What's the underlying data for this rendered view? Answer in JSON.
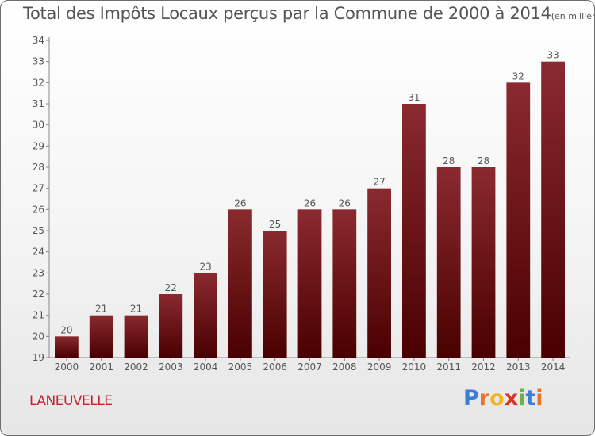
{
  "chart_data": {
    "type": "bar",
    "title": "Total des Impôts Locaux perçus par la Commune de 2000 à 2014",
    "title_unit": "(en milliers d'€)",
    "categories": [
      "2000",
      "2001",
      "2002",
      "2003",
      "2004",
      "2005",
      "2006",
      "2007",
      "2008",
      "2009",
      "2010",
      "2011",
      "2012",
      "2013",
      "2014"
    ],
    "values": [
      20,
      21,
      21,
      22,
      23,
      26,
      25,
      26,
      26,
      27,
      31,
      28,
      28,
      32,
      33
    ],
    "ylim": [
      19,
      34
    ],
    "yticks": [
      19,
      20,
      21,
      22,
      23,
      24,
      25,
      26,
      27,
      28,
      29,
      30,
      31,
      32,
      33,
      34
    ],
    "grid": false,
    "bar_color": "#7a1a1e"
  },
  "commune": "LANEUVELLE",
  "logo": {
    "letters": [
      "P",
      "r",
      "o",
      "x",
      "i",
      "t",
      "i"
    ],
    "colors": [
      "#3b7dd8",
      "#e8732a",
      "#f2b52a",
      "#d8332a",
      "#6cb33f",
      "#3b7dd8",
      "#e8732a"
    ]
  }
}
